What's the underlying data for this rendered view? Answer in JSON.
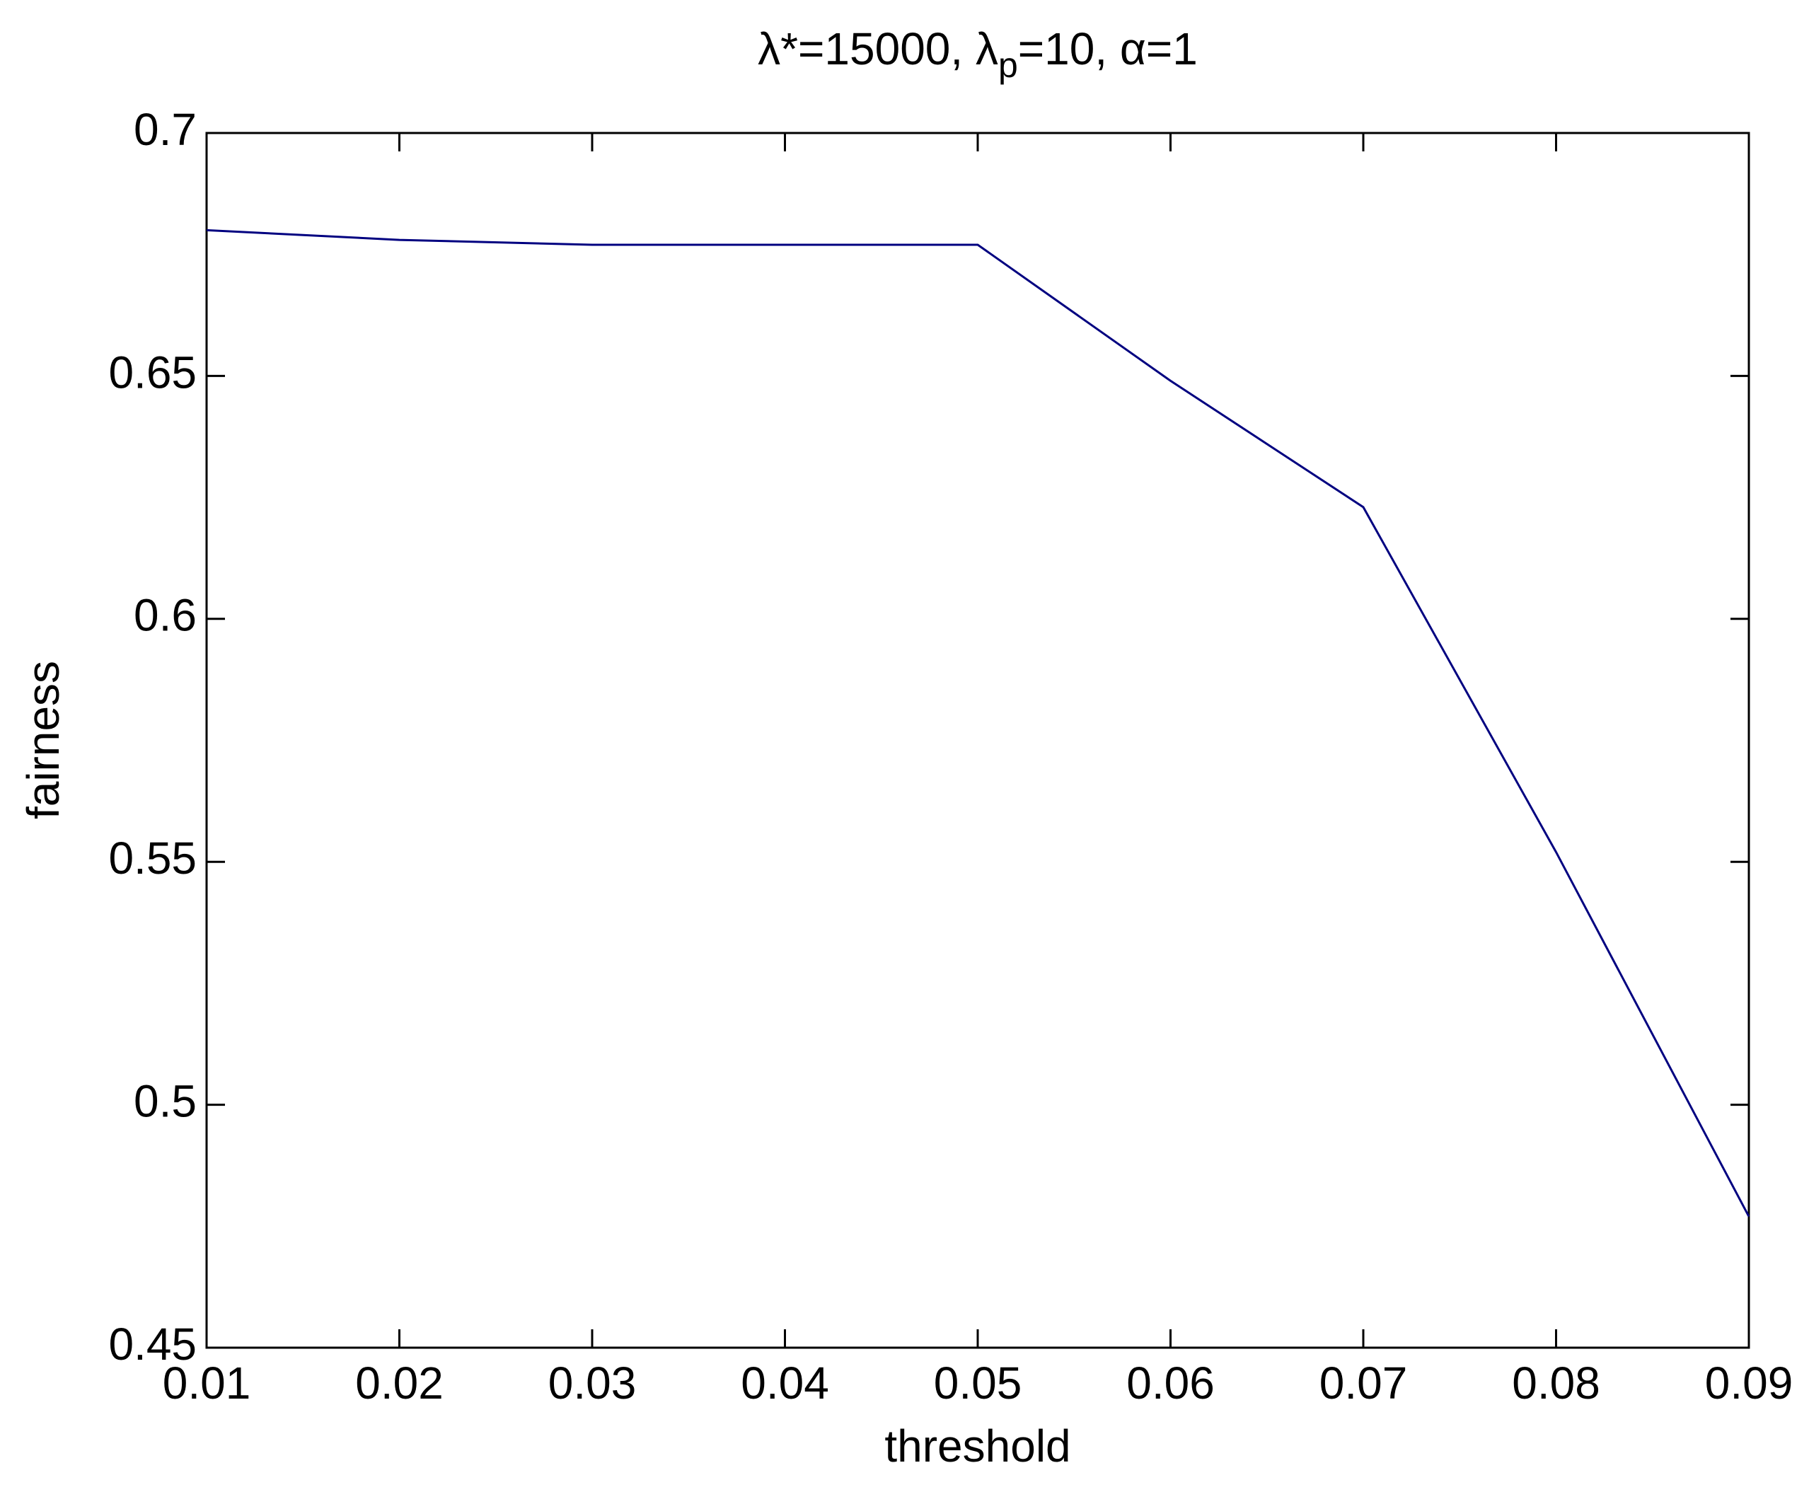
{
  "chart_data": {
    "type": "line",
    "title": [
      "λ*=15000, λ",
      "p",
      "=10, α=1"
    ],
    "x_label": "threshold",
    "y_label": "fairness",
    "x": [
      0.01,
      0.02,
      0.03,
      0.04,
      0.05,
      0.06,
      0.07,
      0.08,
      0.09
    ],
    "series": [
      {
        "color": "#000080",
        "values": [
          0.68,
          0.678,
          0.677,
          0.677,
          0.677,
          0.649,
          0.623,
          0.552,
          0.477
        ]
      }
    ],
    "xlim": [
      0.01,
      0.09
    ],
    "xticks": [
      0.01,
      0.02,
      0.03,
      0.04,
      0.05,
      0.06,
      0.07,
      0.08,
      0.09
    ],
    "ylim": [
      0.45,
      0.7
    ],
    "yticks": [
      0.45,
      0.5,
      0.55,
      0.6,
      0.65,
      0.7
    ]
  }
}
